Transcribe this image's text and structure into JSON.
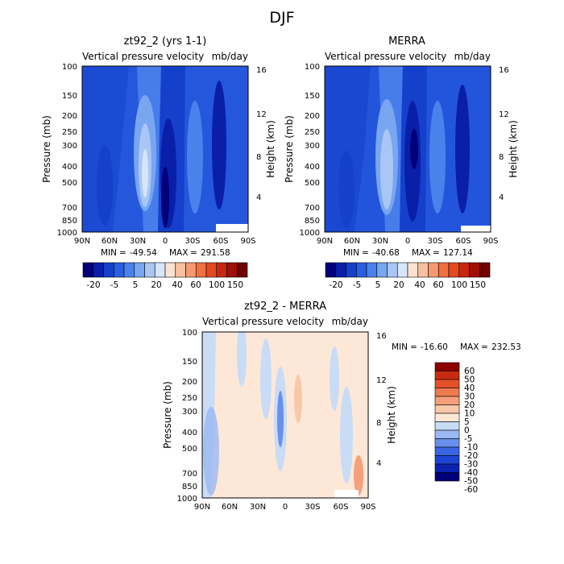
{
  "figure_title": "DJF",
  "chart_data": [
    {
      "type": "heatmap",
      "title": "zt92_2 (yrs 1-1)",
      "subtitle_left": "Vertical pressure velocity",
      "subtitle_right": "mb/day",
      "xlabel": "",
      "ylabel": "Pressure (mb)",
      "ylabel_right": "Height (km)",
      "x_ticks": [
        "90N",
        "60N",
        "30N",
        "0",
        "30S",
        "60S",
        "90S"
      ],
      "y_ticks": [
        "100",
        "150",
        "200",
        "250",
        "300",
        "400",
        "500",
        "700",
        "850",
        "1000"
      ],
      "y_ticks_right": [
        "16",
        "12",
        "8",
        "4"
      ],
      "stats": {
        "min_label": "MIN",
        "min": "-49.54",
        "max_label": "MAX",
        "max": "291.58"
      },
      "colorbar_levels": [
        -50,
        -40,
        -30,
        -20,
        -10,
        -5,
        0,
        5,
        10,
        20,
        30,
        40,
        50,
        60,
        100,
        150
      ],
      "colorbar_labels": [
        "-20",
        "-5",
        "5",
        "20",
        "40",
        "60",
        "100",
        "150"
      ]
    },
    {
      "type": "heatmap",
      "title": "MERRA",
      "subtitle_left": "Vertical pressure velocity",
      "subtitle_right": "mb/day",
      "xlabel": "",
      "ylabel": "Pressure (mb)",
      "ylabel_right": "Height (km)",
      "x_ticks": [
        "90N",
        "60N",
        "30N",
        "0",
        "30S",
        "60S",
        "90S"
      ],
      "y_ticks": [
        "100",
        "150",
        "200",
        "250",
        "300",
        "400",
        "500",
        "700",
        "850",
        "1000"
      ],
      "y_ticks_right": [
        "16",
        "12",
        "8",
        "4"
      ],
      "stats": {
        "min_label": "MIN",
        "min": "-40.68",
        "max_label": "MAX",
        "max": "127.14"
      },
      "colorbar_levels": [
        -50,
        -40,
        -30,
        -20,
        -10,
        -5,
        0,
        5,
        10,
        20,
        30,
        40,
        50,
        60,
        100,
        150
      ],
      "colorbar_labels": [
        "-20",
        "-5",
        "5",
        "20",
        "40",
        "60",
        "100",
        "150"
      ]
    },
    {
      "type": "heatmap",
      "title": "zt92_2 - MERRA",
      "subtitle_left": "Vertical pressure velocity",
      "subtitle_right": "mb/day",
      "xlabel": "",
      "ylabel": "Pressure (mb)",
      "ylabel_right": "Height (km)",
      "x_ticks": [
        "90N",
        "60N",
        "30N",
        "0",
        "30S",
        "60S",
        "90S"
      ],
      "y_ticks": [
        "100",
        "150",
        "200",
        "250",
        "300",
        "400",
        "500",
        "700",
        "850",
        "1000"
      ],
      "y_ticks_right": [
        "16",
        "12",
        "8",
        "4"
      ],
      "stats": {
        "min_label": "MIN",
        "min": "-16.60",
        "max_label": "MAX",
        "max": "232.53"
      },
      "colorbar_levels": [
        -60,
        -50,
        -40,
        -30,
        -20,
        -10,
        -5,
        0,
        5,
        10,
        20,
        30,
        40,
        50,
        60
      ],
      "colorbar_labels": [
        "60",
        "50",
        "40",
        "30",
        "20",
        "10",
        "5",
        "0",
        "-5",
        "-10",
        "-20",
        "-30",
        "-40",
        "-50",
        "-60"
      ]
    }
  ],
  "colors": {
    "mean_palette": [
      "#00007a",
      "#0a1ea8",
      "#1440cc",
      "#2a5fe2",
      "#4a82ec",
      "#78a6f0",
      "#aac6f4",
      "#d6e6f8",
      "#fbe2d0",
      "#f8c0a0",
      "#f59a70",
      "#f0703f",
      "#e44a20",
      "#c82810",
      "#a01008",
      "#700000"
    ],
    "diff_palette": [
      "#00007a",
      "#0c22b0",
      "#1e44d4",
      "#3a66e4",
      "#6a90ee",
      "#9ab8f2",
      "#c8dcf6",
      "#fde8d8",
      "#f8c8a8",
      "#f5a07a",
      "#f07a50",
      "#e45028",
      "#c82c10",
      "#8c0000"
    ]
  }
}
